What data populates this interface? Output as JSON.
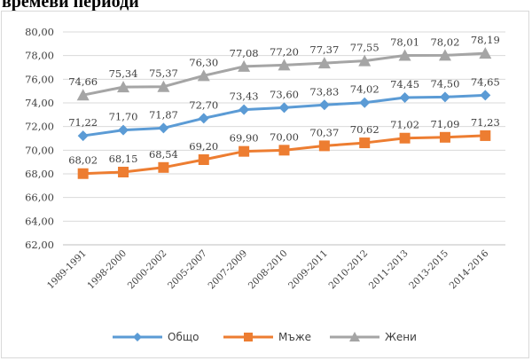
{
  "heading": "времеви периоди",
  "chart_data": {
    "type": "line",
    "categories": [
      "1989-1991",
      "1998-2000",
      "2000-2002",
      "2005-2007",
      "2007-2009",
      "2008-2010",
      "2009-2011",
      "2010-2012",
      "2011-2013",
      "2013-2015",
      "2014-2016"
    ],
    "series": [
      {
        "name": "Общо",
        "color": "#5b9bd5",
        "marker": "diamond",
        "values": [
          71.22,
          71.7,
          71.87,
          72.7,
          73.43,
          73.6,
          73.83,
          74.02,
          74.45,
          74.5,
          74.65
        ],
        "labels": [
          "71,22",
          "71,70",
          "71,87",
          "72,70",
          "73,43",
          "73,60",
          "73,83",
          "74,02",
          "74,45",
          "74,50",
          "74,65"
        ]
      },
      {
        "name": "Мъже",
        "color": "#ed7d31",
        "marker": "square",
        "values": [
          68.02,
          68.15,
          68.54,
          69.2,
          69.9,
          70.0,
          70.37,
          70.62,
          71.02,
          71.09,
          71.23
        ],
        "labels": [
          "68,02",
          "68,15",
          "68,54",
          "69,20",
          "69,90",
          "70,00",
          "70,37",
          "70,62",
          "71,02",
          "71,09",
          "71,23"
        ]
      },
      {
        "name": "Жени",
        "color": "#a5a5a5",
        "marker": "triangle",
        "values": [
          74.66,
          75.34,
          75.37,
          76.3,
          77.08,
          77.2,
          77.37,
          77.55,
          78.01,
          78.02,
          78.19
        ],
        "labels": [
          "74,66",
          "75,34",
          "75,37",
          "76,30",
          "77,08",
          "77,20",
          "77,37",
          "77,55",
          "78,01",
          "78,02",
          "78,19"
        ]
      }
    ],
    "ylim": [
      62,
      80
    ],
    "yticks": [
      "62,00",
      "64,00",
      "66,00",
      "68,00",
      "70,00",
      "72,00",
      "74,00",
      "76,00",
      "78,00",
      "80,00"
    ],
    "grid": true,
    "legend": "bottom"
  }
}
